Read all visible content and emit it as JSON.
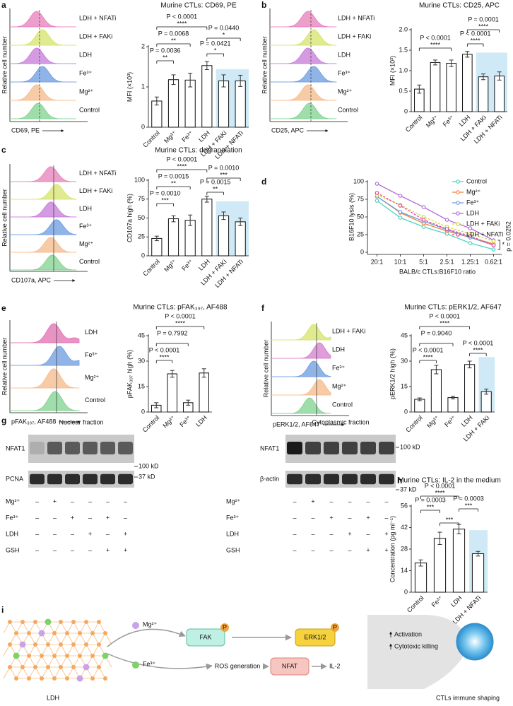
{
  "panel_letters": [
    "a",
    "b",
    "c",
    "d",
    "e",
    "f",
    "g",
    "h",
    "i"
  ],
  "chart_data": [
    {
      "type": "bar",
      "title": "Murine CTLs: CD69, PE",
      "y_label": "MFI (×10³)",
      "categories": [
        "Control",
        "Mg²⁺",
        "Fe³⁺",
        "LDH",
        "LDH + FAKi",
        "LDH + NFATi"
      ],
      "values": [
        0.65,
        1.18,
        1.17,
        1.53,
        1.15,
        1.15
      ],
      "errors": [
        0.1,
        0.12,
        0.17,
        0.1,
        0.15,
        0.14
      ],
      "color": "#ffffff",
      "edge_color": "#111111",
      "highlight_color": "#cfeaf6",
      "ylim": [
        0,
        2
      ],
      "yticks": [
        0,
        1,
        2
      ],
      "annotations": [
        {
          "p": "P < 0.0001",
          "stars": "****"
        },
        {
          "p": "P = 0.0068",
          "stars": "**"
        },
        {
          "p": "P = 0.0036",
          "stars": "**"
        },
        {
          "p": "P = 0.0440",
          "stars": "*"
        },
        {
          "p": "P = 0.0421",
          "stars": "*"
        }
      ]
    },
    {
      "type": "bar",
      "title": "Murine CTLs: CD25, APC",
      "y_label": "MFI (×10³)",
      "categories": [
        "Control",
        "Mg²⁺",
        "Fe³⁺",
        "LDH",
        "LDH + FAKi",
        "LDH + NFATi"
      ],
      "values": [
        0.55,
        1.2,
        1.18,
        1.4,
        0.85,
        0.87
      ],
      "errors": [
        0.1,
        0.06,
        0.08,
        0.07,
        0.07,
        0.1
      ],
      "color": "#ffffff",
      "edge_color": "#111111",
      "highlight_color": "#cfeaf6",
      "ylim": [
        0,
        2
      ],
      "yticks": [
        0,
        {
          "value": 0.5,
          "label": "0.5"
        },
        {
          "value": 1,
          "label": "1.0"
        },
        {
          "value": 1.5,
          "label": "1.5"
        },
        {
          "value": 2,
          "label": "2.0"
        }
      ],
      "annotations": [
        {
          "p": "P < 0.0001",
          "stars": "****"
        },
        {
          "p": "P = 0.0001",
          "stars": "****"
        },
        {
          "p": "P < 0.0001",
          "stars": "****"
        }
      ]
    },
    {
      "type": "bar",
      "title": "Murine CTLs: degranulation",
      "y_label": "CD107a high (%)",
      "categories": [
        "Control",
        "Mg²⁺",
        "Fe³⁺",
        "LDH",
        "LDH + FAKi",
        "LDH + NFATi"
      ],
      "values": [
        23,
        49,
        47,
        75,
        53,
        45
      ],
      "errors": [
        3,
        4,
        7,
        4,
        5,
        5
      ],
      "color": "#ffffff",
      "edge_color": "#111111",
      "highlight_color": "#cfeaf6",
      "ylim": [
        0,
        100
      ],
      "yticks": [
        0,
        25,
        50,
        75,
        100
      ],
      "annotations": [
        {
          "p": "P < 0.0001",
          "stars": "****"
        },
        {
          "p": "P = 0.0015",
          "stars": "**"
        },
        {
          "p": "P = 0.0010",
          "stars": "***"
        },
        {
          "p": "P = 0.0010",
          "stars": "***"
        },
        {
          "p": "P = 0.0015",
          "stars": "**"
        }
      ]
    },
    {
      "type": "line",
      "y_label": "B16F10 lysis (%)",
      "x_label": "BALB/c CTLs:B16F10 ratio",
      "categories": [
        "20:1",
        "10:1",
        "5:1",
        "2.5:1",
        "1.25:1",
        "0.62:1"
      ],
      "ylim": [
        0,
        100
      ],
      "yticks": [
        0,
        25,
        50,
        75,
        100
      ],
      "series": [
        {
          "name": "Control",
          "color": "#4fd1c1",
          "dashed": false,
          "values": [
            73,
            49,
            36,
            26,
            13,
            4
          ]
        },
        {
          "name": "Mg²⁺",
          "color": "#f2853b",
          "dashed": false,
          "values": [
            79,
            56,
            41,
            30,
            21,
            12
          ]
        },
        {
          "name": "Fe³⁺",
          "color": "#6f9fe0",
          "dashed": false,
          "values": [
            79,
            57,
            44,
            32,
            21,
            10
          ]
        },
        {
          "name": "LDH",
          "color": "#b66fd6",
          "dashed": false,
          "values": [
            97,
            80,
            64,
            46,
            34,
            17
          ]
        },
        {
          "name": "LDH + FAKi",
          "color": "#c9dc3d",
          "dashed": true,
          "values": [
            81,
            67,
            50,
            36,
            26,
            16
          ]
        },
        {
          "name": "LDH + NFATi",
          "color": "#e6449a",
          "dashed": true,
          "values": [
            84,
            66,
            46,
            33,
            23,
            10
          ]
        }
      ],
      "annotations": [
        {
          "p": "p = 0.0252",
          "stars": "*"
        }
      ]
    },
    {
      "type": "bar",
      "title": "Murine CTLs: pFAK₃₉₇, AF488",
      "y_label": "pFAK₃₉₇ high (%)",
      "categories": [
        "Control",
        "Mg²⁺",
        "Fe³⁺",
        "LDH"
      ],
      "values": [
        4,
        22.5,
        5.5,
        23
      ],
      "errors": [
        1.5,
        2,
        1.5,
        2.5
      ],
      "color": "#ffffff",
      "edge_color": "#111111",
      "ylim": [
        0,
        45
      ],
      "yticks": [
        0,
        15,
        30,
        45
      ],
      "annotations": [
        {
          "p": "P < 0.0001",
          "stars": "****"
        },
        {
          "p": "P = 0.7992"
        },
        {
          "p": "P < 0.0001",
          "stars": "****"
        }
      ]
    },
    {
      "type": "bar",
      "title": "Murine CTLs: pERK1/2, AF647",
      "y_label": "pERK1/2 high (%)",
      "categories": [
        "Control",
        "Mg²⁺",
        "Fe³⁺",
        "LDH",
        "LDH + FAKi"
      ],
      "values": [
        7.5,
        25,
        8.5,
        28,
        12
      ],
      "errors": [
        0.8,
        2.5,
        0.8,
        2,
        1.5
      ],
      "color": "#ffffff",
      "edge_color": "#111111",
      "highlight_color": "#cfeaf6",
      "ylim": [
        0,
        45
      ],
      "yticks": [
        0,
        15,
        30,
        45
      ],
      "annotations": [
        {
          "p": "P < 0.0001",
          "stars": "****"
        },
        {
          "p": "P = 0.9040"
        },
        {
          "p": "P < 0.0001",
          "stars": "****"
        },
        {
          "p": "P < 0.0001",
          "stars": "****"
        }
      ]
    },
    {
      "type": "bar",
      "title": "Murine CTLs: IL-2 in the medium",
      "y_label": "Concentration (pg ml⁻¹)",
      "categories": [
        "Control",
        "Fe³⁺",
        "LDH",
        "LDH + NFATi"
      ],
      "values": [
        19,
        35,
        41,
        25
      ],
      "errors": [
        2,
        4,
        3,
        1.5
      ],
      "color": "#ffffff",
      "edge_color": "#111111",
      "highlight_color": "#cfeaf6",
      "ylim": [
        0,
        56
      ],
      "yticks": [
        0,
        14,
        28,
        42,
        56
      ],
      "annotations": [
        {
          "p": "P < 0.0001",
          "stars": "****"
        },
        {
          "p": "P = 0.0003",
          "stars": "***"
        },
        {
          "stars": "***"
        },
        {
          "p": "P = 0.0003",
          "stars": "***"
        }
      ]
    }
  ],
  "histograms": [
    {
      "y_label": "Relative cell number",
      "x_label": "CD69, PE",
      "labels": [
        "LDH + NFATi",
        "LDH + FAKi",
        "LDH",
        "Fe³⁺",
        "Mg²⁺",
        "Control"
      ],
      "colors": [
        "#e77fb9",
        "#d6e36a",
        "#c77ad8",
        "#6b9be0",
        "#f6b98a",
        "#7fd18d"
      ]
    },
    {
      "y_label": "Relative cell number",
      "x_label": "CD25, APC",
      "labels": [
        "LDH + NFATi",
        "LDH + FAKi",
        "LDH",
        "Fe³⁺",
        "Mg²⁺",
        "Control"
      ],
      "colors": [
        "#e77fb9",
        "#d6e36a",
        "#c77ad8",
        "#6b9be0",
        "#f6b98a",
        "#7fd18d"
      ]
    },
    {
      "y_label": "Relative cell number",
      "x_label": "CD107a, APC",
      "labels": [
        "LDH + NFATi",
        "LDH + FAKi",
        "LDH",
        "Fe³⁺",
        "Mg²⁺",
        "Control"
      ],
      "colors": [
        "#e77fb9",
        "#d6e36a",
        "#c77ad8",
        "#6b9be0",
        "#f6b98a",
        "#7fd18d"
      ]
    },
    {
      "y_label": "Relative cell number",
      "x_label": "pFAK₃₉₇, AF488",
      "labels": [
        "LDH",
        "Fe³⁺",
        "Mg²⁺",
        "Control"
      ],
      "colors": [
        "#e06fb0",
        "#6b9be0",
        "#f6b98a",
        "#7fd18d"
      ]
    },
    {
      "y_label": "Relative cell number",
      "x_label": "pERK1/2, AF647",
      "labels": [
        "LDH + FAKi",
        "LDH",
        "Fe³⁺",
        "Mg²⁺",
        "Control"
      ],
      "colors": [
        "#d6e36a",
        "#d67ccf",
        "#6b9be0",
        "#f6b98a",
        "#7fd18d"
      ]
    }
  ],
  "blots": [
    {
      "title": "Nuclear fraction",
      "bands": [
        "NFAT1",
        "PCNA"
      ],
      "markers": [
        "100 kD",
        "37 kD"
      ],
      "conditions": [
        {
          "label": "Mg²⁺",
          "lanes": [
            "–",
            "+",
            "–",
            "–",
            "–",
            "–"
          ]
        },
        {
          "label": "Fe³⁺",
          "lanes": [
            "–",
            "–",
            "+",
            "–",
            "+",
            "–"
          ]
        },
        {
          "label": "LDH",
          "lanes": [
            "–",
            "–",
            "–",
            "+",
            "–",
            "+"
          ]
        },
        {
          "label": "GSH",
          "lanes": [
            "–",
            "–",
            "–",
            "–",
            "+",
            "+"
          ]
        }
      ]
    },
    {
      "title": "Cytoplasmic fraction",
      "bands": [
        "NFAT1",
        "β-actin"
      ],
      "markers": [
        "100 kD",
        "37 kD"
      ],
      "conditions": [
        {
          "label": "Mg²⁺",
          "lanes": [
            "–",
            "+",
            "–",
            "–",
            "–",
            "–"
          ]
        },
        {
          "label": "Fe³⁺",
          "lanes": [
            "–",
            "–",
            "+",
            "–",
            "+",
            "–"
          ]
        },
        {
          "label": "LDH",
          "lanes": [
            "–",
            "–",
            "–",
            "+",
            "–",
            "+"
          ]
        },
        {
          "label": "GSH",
          "lanes": [
            "–",
            "–",
            "–",
            "–",
            "+",
            "+"
          ]
        }
      ]
    }
  ],
  "schematic": {
    "lattice_label": "LDH",
    "mg": "Mg²⁺",
    "fe": "Fe³⁺",
    "fak": "FAK",
    "erk": "ERK1/2",
    "phospho": "P",
    "ros": "ROS generation",
    "nfat": "NFAT",
    "il2": "IL-2",
    "effects": [
      "Activation",
      "Cytotoxic killing"
    ],
    "caption": "CTLs immune shaping"
  }
}
